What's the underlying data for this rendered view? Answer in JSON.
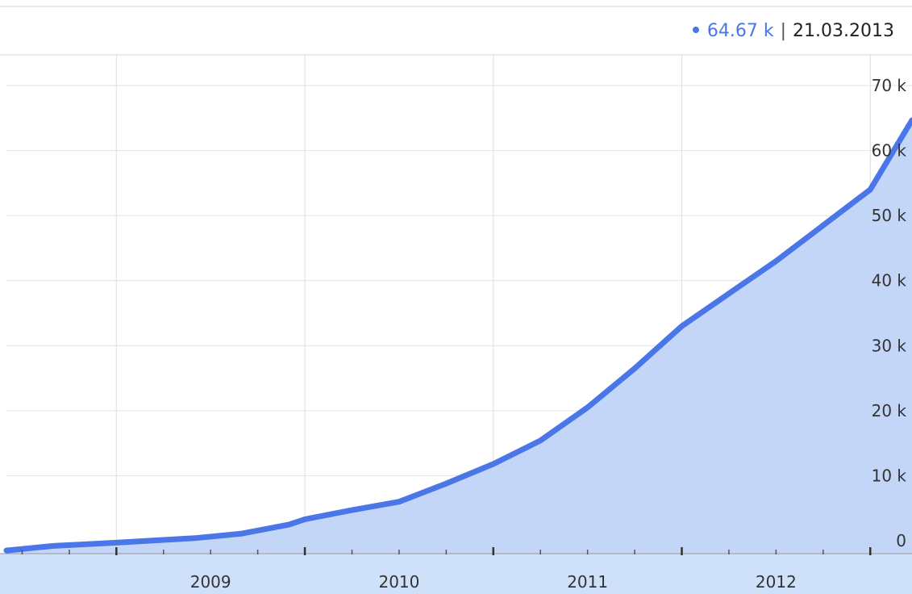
{
  "legend": {
    "value": "64.67 k",
    "separator": "|",
    "date": "21.03.2013"
  },
  "colors": {
    "line": "#4a76e8",
    "area": "#c4d6f8",
    "grid": "#e2e2e2",
    "xaxis_bg": "#cfe0fa",
    "tick_text": "#333333",
    "legend_value": "#4a76e8"
  },
  "chart_data": {
    "type": "area",
    "title": "",
    "xlabel": "",
    "ylabel": "",
    "x_tick_labels": [
      "2009",
      "2010",
      "2011",
      "2012"
    ],
    "y_tick_labels": [
      "0",
      "10 k",
      "20 k",
      "30 k",
      "40 k",
      "50 k",
      "60 k",
      "70 k"
    ],
    "y_tick_values": [
      0,
      10000,
      20000,
      30000,
      40000,
      50000,
      60000,
      70000
    ],
    "xlim": [
      "2008-06",
      "2013-03-21"
    ],
    "ylim": [
      0,
      70000
    ],
    "grid": true,
    "y_axis_position": "right",
    "series": [
      {
        "x": [
          "2008-06",
          "2008-09",
          "2009-01",
          "2009-06",
          "2009-09",
          "2009-12",
          "2010-01",
          "2010-04",
          "2010-07",
          "2010-10",
          "2011-01",
          "2011-04",
          "2011-07",
          "2011-10",
          "2012-01",
          "2012-04",
          "2012-07",
          "2012-10",
          "2013-01",
          "2013-03-21"
        ],
        "values": [
          -1500,
          -800,
          -300,
          400,
          1100,
          2500,
          3300,
          4700,
          6000,
          8800,
          11800,
          15400,
          20500,
          26500,
          33000,
          38000,
          43000,
          48500,
          54000,
          64670
        ]
      }
    ]
  }
}
